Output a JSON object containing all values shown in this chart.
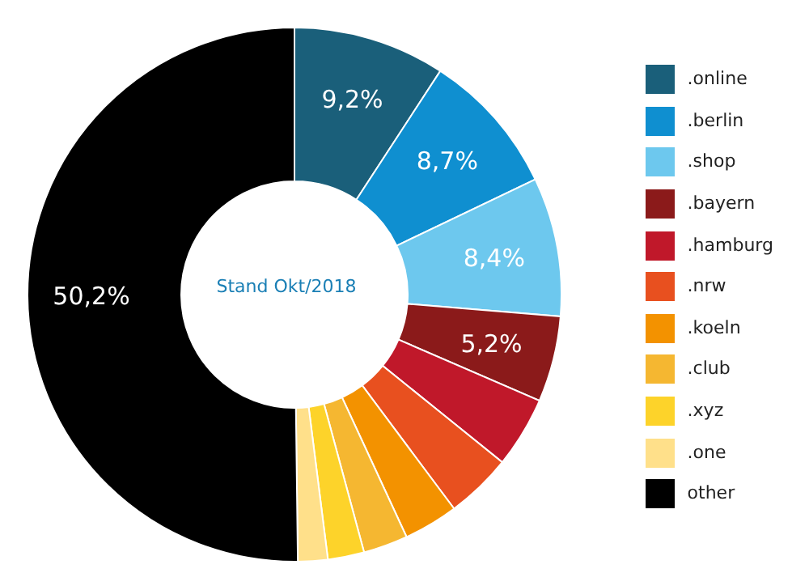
{
  "chart_data": {
    "type": "donut",
    "categories": [
      ".online",
      ".berlin",
      ".shop",
      ".bayern",
      ".hamburg",
      ".nrw",
      ".koeln",
      ".club",
      ".xyz",
      ".one",
      "other"
    ],
    "values": [
      9.2,
      8.7,
      8.4,
      5.2,
      4.3,
      4.0,
      3.3,
      2.7,
      2.2,
      1.8,
      50.2
    ],
    "colors": [
      "#1a5f7a",
      "#0f8fd0",
      "#6dc8ee",
      "#8b1a1a",
      "#c0182a",
      "#e8501f",
      "#f39200",
      "#f5b731",
      "#fdd32a",
      "#ffe08a",
      "#000000"
    ],
    "value_labels": [
      "9,2%",
      "8,7%",
      "8,4%",
      "5,2%",
      null,
      null,
      null,
      null,
      null,
      null,
      "50,2%"
    ],
    "annotations": [
      "Stand Okt/2018"
    ],
    "legend": "right"
  }
}
